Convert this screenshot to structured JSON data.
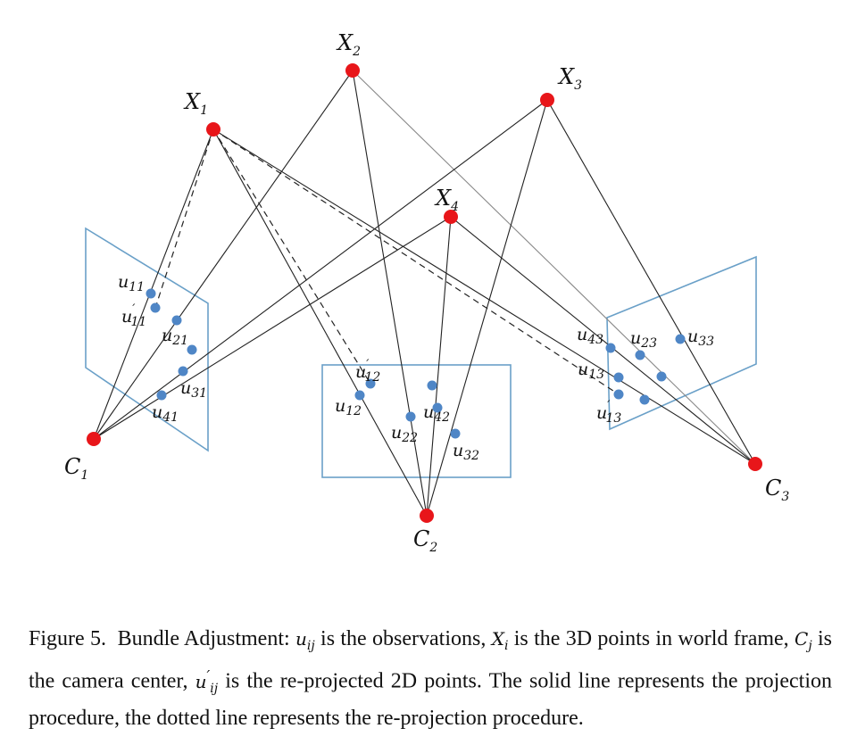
{
  "points": {
    "X1": {
      "main": "X",
      "sub": "1"
    },
    "X2": {
      "main": "X",
      "sub": "2"
    },
    "X3": {
      "main": "X",
      "sub": "3"
    },
    "X4": {
      "main": "X",
      "sub": "4"
    },
    "C1": {
      "main": "C",
      "sub": "1"
    },
    "C2": {
      "main": "C",
      "sub": "2"
    },
    "C3": {
      "main": "C",
      "sub": "3"
    }
  },
  "observations": {
    "u11": {
      "main": "u",
      "sub": "11"
    },
    "u11p": {
      "main": "u",
      "sub": "11",
      "prime": "′"
    },
    "u21": {
      "main": "u",
      "sub": "21"
    },
    "u31": {
      "main": "u",
      "sub": "31"
    },
    "u41": {
      "main": "u",
      "sub": "41"
    },
    "u12": {
      "main": "u",
      "sub": "12"
    },
    "u12p": {
      "main": "u",
      "sub": "12",
      "prime": "′"
    },
    "u22": {
      "main": "u",
      "sub": "22"
    },
    "u32": {
      "main": "u",
      "sub": "32"
    },
    "u42": {
      "main": "u",
      "sub": "42"
    },
    "u13": {
      "main": "u",
      "sub": "13"
    },
    "u13p": {
      "main": "u",
      "sub": "13",
      "prime": "′"
    },
    "u23": {
      "main": "u",
      "sub": "23"
    },
    "u33": {
      "main": "u",
      "sub": "33"
    },
    "u43": {
      "main": "u",
      "sub": "43"
    }
  },
  "caption": {
    "prefix": "Figure 5.",
    "p1": "Bundle Adjustment: ",
    "v_uij_main": "u",
    "v_uij_sub": "ij",
    "p2": " is the observations, ",
    "v_Xi_main": "X",
    "v_Xi_sub": "i",
    "p3": " is the 3D points in world frame, ",
    "v_Cj_main": "C",
    "v_Cj_sub": "j",
    "p4": " is the camera center, ",
    "v_uijp_main": "u",
    "v_uijp_prime": "′",
    "v_uijp_sub": "ij",
    "p5": " is the re-projected 2D points. The solid line represents the projection procedure, the dotted line represents the re-projection procedure."
  },
  "colors": {
    "point": "#e8161a",
    "observation": "#4f86c6",
    "plane": "#6aa0c8",
    "ray": "#222222"
  }
}
